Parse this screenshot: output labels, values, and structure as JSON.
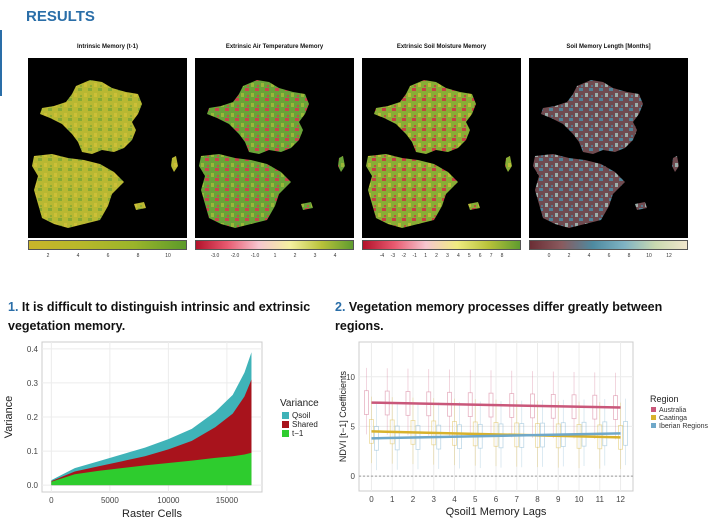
{
  "heading": "RESULTS",
  "maps": [
    {
      "title": "Intrinsic Memory (t-1)",
      "ticks": [
        "2",
        "4",
        "6",
        "8",
        "10"
      ],
      "gradient": [
        "#c9b52a",
        "#b7b82a",
        "#9bb52a",
        "#5c9a2a"
      ],
      "land": "#b8b832",
      "accent": "#7fa735",
      "accent2": "#d2c13a"
    },
    {
      "title": "Extrinsic Air Temperature Memory",
      "ticks": [
        "-3.0",
        "-2.0",
        "-1.0",
        "1",
        "2",
        "3",
        "4"
      ],
      "gradient": [
        "#b3122b",
        "#e85a70",
        "#f5c6cf",
        "#f5f0a0",
        "#b8c23a",
        "#5f9c2f"
      ],
      "land": "#6aa338",
      "accent": "#d93750",
      "accent2": "#a8bc3a"
    },
    {
      "title": "Extrinsic Soil Moisture Memory",
      "ticks": [
        "-4",
        "-3",
        "-2",
        "-1",
        "1",
        "2",
        "3",
        "4",
        "5",
        "6",
        "7",
        "8"
      ],
      "gradient": [
        "#b3122b",
        "#e85a70",
        "#f5c6cf",
        "#f0ec80",
        "#b8c23a",
        "#5f9c2f"
      ],
      "land": "#88ad35",
      "accent": "#d32c45",
      "accent2": "#c7bf3a"
    },
    {
      "title": "Soil Memory Length [Months]",
      "ticks": [
        "0",
        "2",
        "4",
        "6",
        "8",
        "10",
        "12"
      ],
      "gradient": [
        "#6b2e35",
        "#8a5a5e",
        "#4e8aa0",
        "#7fb3c3",
        "#c9d9b0",
        "#f0e6cc"
      ],
      "land": "#6f4b50",
      "accent": "#4d8ea5",
      "accent2": "#a8c6c0"
    }
  ],
  "caption1": {
    "number": "1.",
    "text": "It is difficult to distinguish intrinsic and extrinsic vegetation memory."
  },
  "caption2": {
    "number": "2.",
    "text": "Vegetation memory processes differ greatly between regions."
  },
  "chart_data": [
    {
      "type": "area",
      "xlabel": "Raster Cells",
      "ylabel": "Variance",
      "x_ticks": [
        0,
        5000,
        10000,
        15000
      ],
      "y_ticks": [
        0.0,
        0.1,
        0.2,
        0.3,
        0.4
      ],
      "xlim": [
        -800,
        18000
      ],
      "ylim": [
        -0.02,
        0.42
      ],
      "legend_title": "Variance",
      "legend_position": "right",
      "series": [
        {
          "name": "Qsoil",
          "color": "#3fb3b8",
          "x": [
            0,
            2000,
            4000,
            6000,
            8000,
            10000,
            12000,
            14000,
            15500,
            16500,
            17100
          ],
          "values": [
            0.015,
            0.05,
            0.07,
            0.09,
            0.11,
            0.135,
            0.165,
            0.215,
            0.265,
            0.33,
            0.39
          ]
        },
        {
          "name": "Shared",
          "color": "#a8131c",
          "x": [
            0,
            2000,
            4000,
            6000,
            8000,
            10000,
            12000,
            14000,
            15500,
            16500,
            17100
          ],
          "values": [
            0.012,
            0.04,
            0.055,
            0.07,
            0.085,
            0.105,
            0.13,
            0.17,
            0.21,
            0.26,
            0.31
          ]
        },
        {
          "name": "t−1",
          "color": "#2ecc2e",
          "x": [
            0,
            2000,
            4000,
            6000,
            8000,
            10000,
            12000,
            14000,
            15500,
            16500,
            17100
          ],
          "values": [
            0.01,
            0.032,
            0.042,
            0.05,
            0.058,
            0.065,
            0.072,
            0.08,
            0.085,
            0.09,
            0.095
          ]
        }
      ]
    },
    {
      "type": "line",
      "xlabel": "Qsoil1 Memory Lags",
      "ylabel": "NDVI [t−1] Coefficients",
      "x_ticks": [
        0,
        1,
        2,
        3,
        4,
        5,
        6,
        7,
        8,
        9,
        10,
        11,
        12
      ],
      "y_ticks": [
        0,
        5,
        10
      ],
      "xlim": [
        -0.6,
        12.6
      ],
      "ylim": [
        -1.5,
        13.5
      ],
      "legend_title": "Region",
      "legend_position": "right",
      "grid": true,
      "series": [
        {
          "name": "Australia",
          "color": "#c9577a",
          "x": [
            0,
            12
          ],
          "values": [
            7.4,
            6.9
          ]
        },
        {
          "name": "Caatinga",
          "color": "#d8b22c",
          "x": [
            0,
            12
          ],
          "values": [
            4.5,
            3.9
          ]
        },
        {
          "name": "Iberian Regions",
          "color": "#6fa8c9",
          "x": [
            0,
            12
          ],
          "values": [
            3.8,
            4.3
          ]
        }
      ]
    }
  ]
}
